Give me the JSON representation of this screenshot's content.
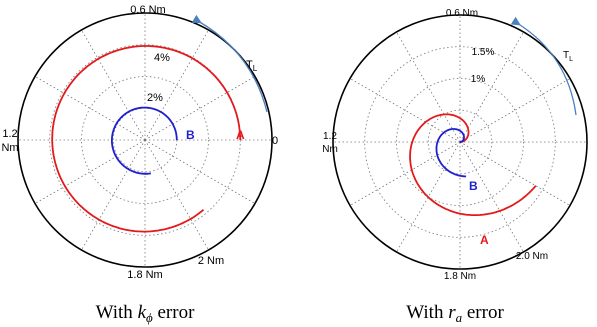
{
  "chart_data": [
    {
      "type": "polar",
      "caption_prefix": "With ",
      "caption_var": "k",
      "caption_sub": "ϕ",
      "caption_suffix": " error",
      "angle_labels": {
        "a0": "0",
        "a90": "0.6 Nm",
        "a180_1": "1.2",
        "a180_2": "Nm",
        "a270": "1.8 Nm",
        "a300": "2 Nm"
      },
      "radial_labels": [
        "2%",
        "4%"
      ],
      "torque_label": "T",
      "torque_sub": "L",
      "rmax": 6,
      "series": [
        {
          "name": "A",
          "color": "#e31a1c",
          "theta0": 0,
          "theta1": 310,
          "r0": 4.5,
          "r1": 4.3
        },
        {
          "name": "B",
          "color": "#1f1fd0",
          "theta0": 0,
          "theta1": 280,
          "r0": 1.5,
          "r1": 1.6
        }
      ]
    },
    {
      "type": "polar",
      "caption_prefix": "With ",
      "caption_var": "r",
      "caption_sub": "a",
      "caption_suffix": " error",
      "angle_labels": {
        "a0": "",
        "a90": "0.6 Nm",
        "a180_1": "1.2",
        "a180_2": "Nm",
        "a270": "1.8 Nm",
        "a300": "2.0 Nm"
      },
      "radial_labels": [
        "1%",
        "1.5%"
      ],
      "torque_label": "T",
      "torque_sub": "L",
      "rmax": 2.25,
      "series": [
        {
          "name": "A",
          "color": "#e31a1c",
          "theta0": 0,
          "theta1": 330,
          "r0": 0.0,
          "r1": 1.55
        },
        {
          "name": "B",
          "color": "#1f1fd0",
          "theta0": 0,
          "theta1": 280,
          "r0": 0.0,
          "r1": 0.62
        }
      ]
    }
  ]
}
